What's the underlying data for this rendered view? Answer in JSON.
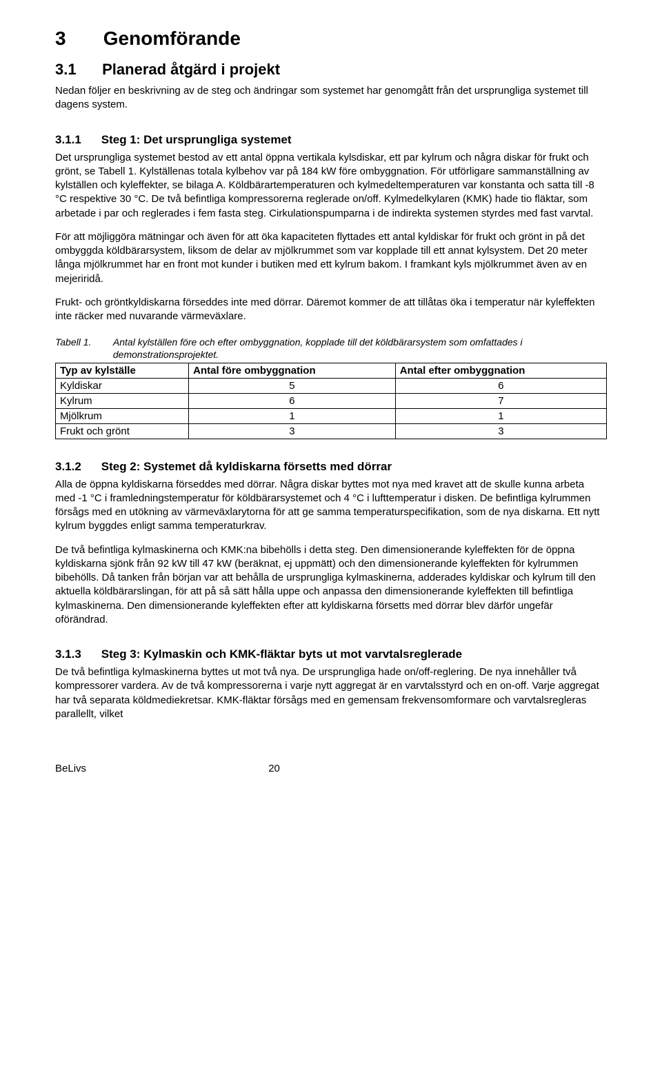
{
  "section": {
    "number": "3",
    "title": "Genomförande"
  },
  "sub31": {
    "number": "3.1",
    "title": "Planerad åtgärd i projekt",
    "intro": "Nedan följer en beskrivning av de steg och ändringar som systemet har genomgått från det ursprungliga systemet till dagens system."
  },
  "sub311": {
    "number": "3.1.1",
    "title": "Steg 1: Det ursprungliga systemet",
    "p1": "Det ursprungliga systemet bestod av ett antal öppna vertikala kylsdiskar, ett par kylrum och några diskar för frukt och grönt, se Tabell 1. Kylställenas totala kylbehov var på 184 kW före ombyggnation. För utförligare sammanställning av kylställen och kyleffekter, se bilaga A. Köldbärartemperaturen och kylmedeltemperaturen var konstanta och satta till -8 °C respektive 30 °C. De två befintliga kompressorerna reglerade on/off. Kylmedelkylaren (KMK) hade tio fläktar, som arbetade i par och reglerades i fem fasta steg. Cirkulationspumparna i de indirekta systemen styrdes med fast varvtal.",
    "p2": "För att möjliggöra mätningar och även för att öka kapaciteten flyttades ett antal kyldiskar för frukt och grönt in på det ombyggda köldbärarsystem, liksom de delar av mjölkrummet som var kopplade till ett annat kylsystem. Det 20 meter långa mjölkrummet har en front mot kunder i butiken med ett kylrum bakom. I framkant kyls mjölkrummet även av en mejeriridå.",
    "p3": "Frukt- och gröntkyldiskarna förseddes inte med dörrar. Däremot kommer de att tillåtas öka i temperatur när kyleffekten inte räcker med nuvarande värmeväxlare."
  },
  "table1": {
    "caption_label": "Tabell 1.",
    "caption_text": "Antal kylställen före och efter ombyggnation, kopplade till det köldbärarsystem som omfattades i demonstrationsprojektet.",
    "headers": {
      "c1": "Typ av kylställe",
      "c2": "Antal före ombyggnation",
      "c3": "Antal efter ombyggnation"
    },
    "rows": [
      {
        "c1": "Kyldiskar",
        "c2": "5",
        "c3": "6"
      },
      {
        "c1": "Kylrum",
        "c2": "6",
        "c3": "7"
      },
      {
        "c1": "Mjölkrum",
        "c2": "1",
        "c3": "1"
      },
      {
        "c1": "Frukt och grönt",
        "c2": "3",
        "c3": "3"
      }
    ]
  },
  "sub312": {
    "number": "3.1.2",
    "title": "Steg 2: Systemet då kyldiskarna försetts med dörrar",
    "p1": "Alla de öppna kyldiskarna förseddes med dörrar. Några diskar byttes mot nya med kravet att de skulle kunna arbeta med -1 °C i framledningstemperatur för köldbärarsystemet och 4 °C i lufttemperatur i disken. De befintliga kylrummen försågs med en utökning av värmeväxlarytorna för att ge samma temperaturspecifikation, som de nya diskarna. Ett nytt kylrum byggdes enligt samma temperaturkrav.",
    "p2": "De två befintliga kylmaskinerna och KMK:na bibehölls i detta steg. Den dimensionerande kyleffekten för de öppna kyldiskarna sjönk från 92 kW till 47 kW (beräknat, ej uppmätt) och den dimensionerande kyleffekten för kylrummen bibehölls. Då tanken från början var att behålla de ursprungliga kylmaskinerna, adderades kyldiskar och kylrum till den aktuella köldbärarslingan, för att på så sätt hålla uppe och anpassa den dimensionerande kyleffekten till befintliga kylmaskinerna. Den dimensionerande kyleffekten efter att kyldiskarna försetts med dörrar blev därför ungefär oförändrad."
  },
  "sub313": {
    "number": "3.1.3",
    "title": "Steg 3: Kylmaskin och KMK-fläktar byts ut mot varvtalsreglerade",
    "p1": "De två befintliga kylmaskinerna byttes ut mot två nya. De ursprungliga hade on/off-reglering. De nya innehåller två kompressorer vardera. Av de två kompressorerna i varje nytt aggregat är en varvtalsstyrd och en on-off. Varje aggregat har två separata köldmediekretsar. KMK-fläktar försågs med en gemensam frekvensomformare och varvtalsregleras parallellt, vilket"
  },
  "footer": {
    "brand": "BeLivs",
    "page": "20"
  }
}
